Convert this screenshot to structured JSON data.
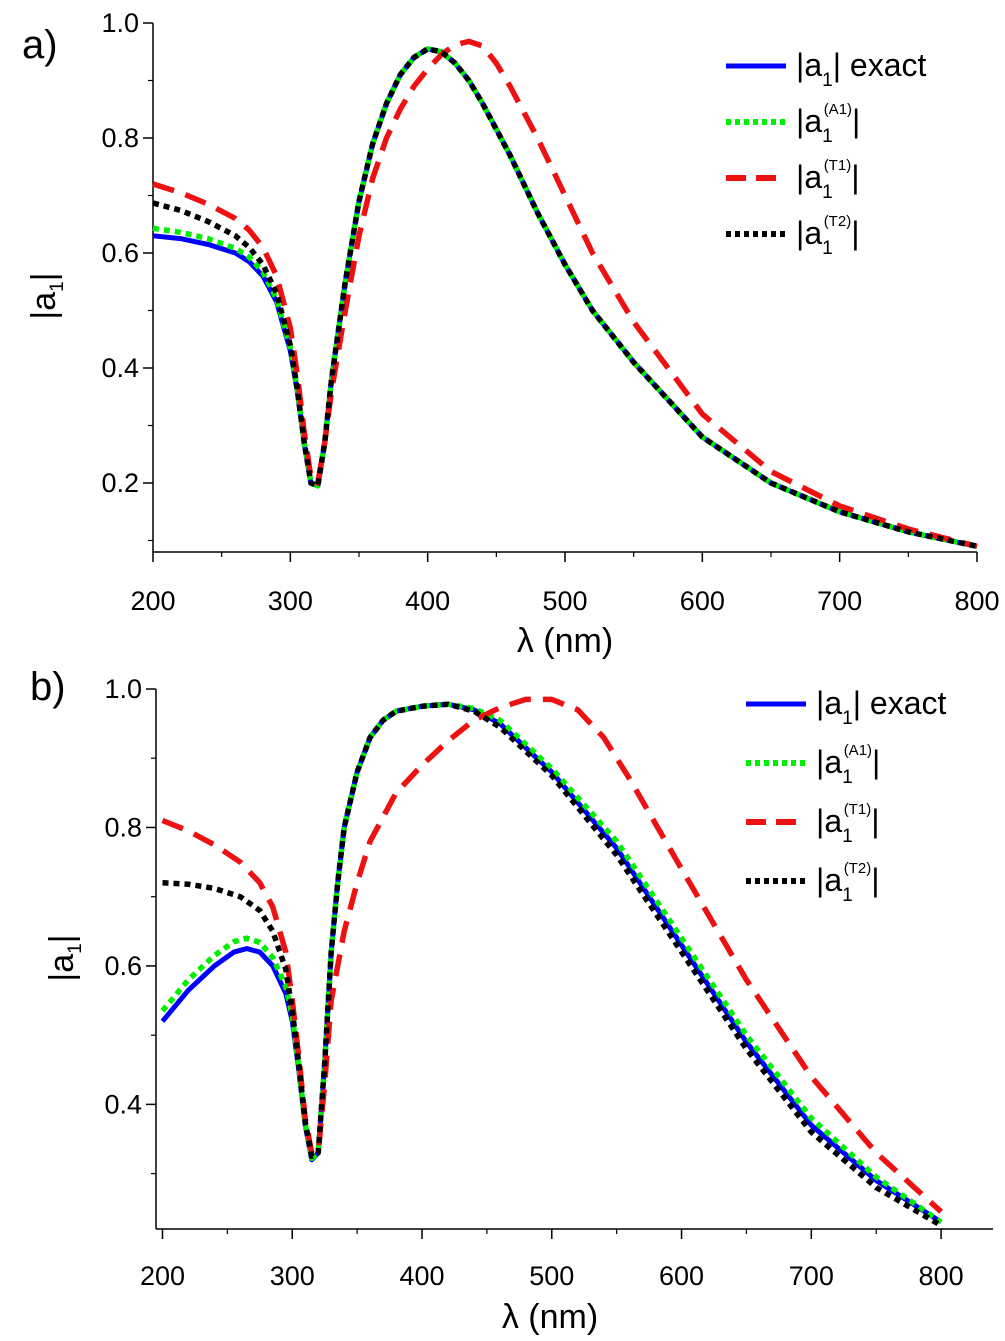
{
  "figure": {
    "panels": [
      "a)",
      "b)"
    ]
  },
  "chart_data": [
    {
      "type": "line",
      "panel": "a)",
      "title": "",
      "xlabel": "λ (nm)",
      "ylabel": "|a1|",
      "xlim": [
        200,
        800
      ],
      "ylim": [
        0.08,
        1.0
      ],
      "xticks": [
        200,
        300,
        400,
        500,
        600,
        700,
        800
      ],
      "yticks": [
        0.2,
        0.4,
        0.6,
        0.8,
        1.0
      ],
      "xtick_labels": [
        "200",
        "300",
        "400",
        "500",
        "600",
        "700",
        "800"
      ],
      "ytick_labels": [
        "0.2",
        "0.4",
        "0.6",
        "0.8",
        "1.0"
      ],
      "grid": false,
      "legend_position": "top-right",
      "series": [
        {
          "name": "|a1| exact",
          "label_main": "|a",
          "label_sub": "1",
          "label_sup": "",
          "label_tail": "| exact",
          "color": "#0000ff",
          "style": "solid",
          "x": [
            200,
            220,
            240,
            260,
            270,
            280,
            290,
            300,
            305,
            310,
            315,
            320,
            325,
            330,
            340,
            350,
            360,
            370,
            380,
            390,
            400,
            410,
            420,
            430,
            440,
            460,
            480,
            500,
            520,
            550,
            600,
            650,
            700,
            750,
            800
          ],
          "y": [
            0.63,
            0.625,
            0.615,
            0.6,
            0.585,
            0.56,
            0.515,
            0.43,
            0.36,
            0.27,
            0.2,
            0.195,
            0.27,
            0.38,
            0.55,
            0.69,
            0.79,
            0.86,
            0.91,
            0.94,
            0.955,
            0.95,
            0.93,
            0.9,
            0.86,
            0.77,
            0.67,
            0.58,
            0.5,
            0.41,
            0.28,
            0.2,
            0.15,
            0.115,
            0.09
          ]
        },
        {
          "name": "|a1(A1)|",
          "label_main": "|a",
          "label_sub": "1",
          "label_sup": "(A1)",
          "label_tail": "|",
          "color": "#00ee00",
          "style": "dotted",
          "x": [
            200,
            220,
            240,
            260,
            270,
            280,
            290,
            300,
            305,
            310,
            315,
            320,
            325,
            330,
            340,
            350,
            360,
            370,
            380,
            390,
            400,
            410,
            420,
            430,
            440,
            460,
            480,
            500,
            520,
            550,
            600,
            650,
            700,
            750,
            800
          ],
          "y": [
            0.643,
            0.636,
            0.625,
            0.608,
            0.593,
            0.567,
            0.52,
            0.435,
            0.363,
            0.272,
            0.2,
            0.195,
            0.27,
            0.38,
            0.55,
            0.69,
            0.79,
            0.86,
            0.91,
            0.94,
            0.955,
            0.95,
            0.93,
            0.9,
            0.86,
            0.77,
            0.67,
            0.58,
            0.5,
            0.41,
            0.28,
            0.2,
            0.15,
            0.115,
            0.09
          ]
        },
        {
          "name": "|a1(T1)|",
          "label_main": "|a",
          "label_sub": "1",
          "label_sup": "(T1)",
          "label_tail": "|",
          "color": "#ee1111",
          "style": "dashed",
          "x": [
            200,
            220,
            240,
            260,
            270,
            280,
            290,
            300,
            305,
            310,
            315,
            320,
            325,
            330,
            340,
            350,
            360,
            370,
            380,
            390,
            400,
            410,
            420,
            430,
            440,
            450,
            460,
            480,
            500,
            520,
            550,
            600,
            650,
            700,
            750,
            800
          ],
          "y": [
            0.72,
            0.705,
            0.685,
            0.66,
            0.64,
            0.61,
            0.56,
            0.47,
            0.39,
            0.29,
            0.21,
            0.2,
            0.27,
            0.36,
            0.5,
            0.63,
            0.73,
            0.8,
            0.85,
            0.89,
            0.92,
            0.945,
            0.962,
            0.968,
            0.96,
            0.93,
            0.89,
            0.8,
            0.7,
            0.6,
            0.48,
            0.32,
            0.22,
            0.16,
            0.12,
            0.09
          ]
        },
        {
          "name": "|a1(T2)|",
          "label_main": "|a",
          "label_sub": "1",
          "label_sup": "(T2)",
          "label_tail": "|",
          "color": "#000000",
          "style": "dotted",
          "x": [
            200,
            220,
            240,
            260,
            270,
            280,
            290,
            300,
            305,
            310,
            315,
            320,
            325,
            330,
            340,
            350,
            360,
            370,
            380,
            390,
            400,
            410,
            420,
            430,
            440,
            460,
            480,
            500,
            520,
            550,
            600,
            650,
            700,
            750,
            800
          ],
          "y": [
            0.687,
            0.674,
            0.655,
            0.63,
            0.61,
            0.58,
            0.53,
            0.44,
            0.365,
            0.272,
            0.2,
            0.195,
            0.27,
            0.38,
            0.55,
            0.69,
            0.79,
            0.86,
            0.91,
            0.94,
            0.955,
            0.95,
            0.93,
            0.9,
            0.86,
            0.77,
            0.67,
            0.58,
            0.5,
            0.41,
            0.28,
            0.2,
            0.15,
            0.115,
            0.09
          ]
        }
      ]
    },
    {
      "type": "line",
      "panel": "b)",
      "title": "",
      "xlabel": "λ (nm)",
      "ylabel": "|a1|",
      "xlim": [
        195,
        840
      ],
      "ylim": [
        0.22,
        1.0
      ],
      "xticks": [
        200,
        300,
        400,
        500,
        600,
        700,
        800
      ],
      "yticks": [
        0.4,
        0.6,
        0.8,
        1.0
      ],
      "xtick_labels": [
        "200",
        "300",
        "400",
        "500",
        "600",
        "700",
        "800"
      ],
      "ytick_labels": [
        "0.4",
        "0.6",
        "0.8",
        "1.0"
      ],
      "grid": false,
      "legend_position": "top-right",
      "series": [
        {
          "name": "|a1| exact",
          "label_main": "|a",
          "label_sub": "1",
          "label_sup": "",
          "label_tail": "| exact",
          "color": "#0000ff",
          "style": "solid",
          "x": [
            200,
            220,
            240,
            255,
            265,
            275,
            285,
            295,
            300,
            305,
            310,
            315,
            320,
            325,
            330,
            335,
            340,
            350,
            360,
            370,
            380,
            400,
            420,
            440,
            460,
            500,
            550,
            600,
            650,
            700,
            750,
            800
          ],
          "y": [
            0.52,
            0.565,
            0.6,
            0.62,
            0.625,
            0.62,
            0.6,
            0.56,
            0.52,
            0.45,
            0.37,
            0.32,
            0.33,
            0.46,
            0.62,
            0.72,
            0.8,
            0.88,
            0.93,
            0.955,
            0.968,
            0.975,
            0.978,
            0.97,
            0.95,
            0.88,
            0.77,
            0.63,
            0.49,
            0.37,
            0.29,
            0.23
          ]
        },
        {
          "name": "|a1(A1)|",
          "label_main": "|a",
          "label_sub": "1",
          "label_sup": "(A1)",
          "label_tail": "|",
          "color": "#00ee00",
          "style": "dotted",
          "x": [
            200,
            220,
            240,
            255,
            265,
            275,
            285,
            295,
            300,
            305,
            310,
            315,
            320,
            325,
            330,
            335,
            340,
            350,
            360,
            370,
            380,
            400,
            420,
            440,
            460,
            500,
            550,
            600,
            650,
            700,
            750,
            800
          ],
          "y": [
            0.535,
            0.58,
            0.615,
            0.635,
            0.64,
            0.634,
            0.612,
            0.57,
            0.528,
            0.455,
            0.372,
            0.322,
            0.33,
            0.46,
            0.62,
            0.72,
            0.8,
            0.88,
            0.93,
            0.955,
            0.968,
            0.975,
            0.978,
            0.972,
            0.955,
            0.885,
            0.78,
            0.64,
            0.5,
            0.38,
            0.295,
            0.23
          ]
        },
        {
          "name": "|a1(T1)|",
          "label_main": "|a",
          "label_sub": "1",
          "label_sup": "(T1)",
          "label_tail": "|",
          "color": "#ee1111",
          "style": "dashed",
          "x": [
            200,
            220,
            240,
            260,
            275,
            285,
            295,
            300,
            305,
            310,
            315,
            320,
            325,
            330,
            340,
            350,
            360,
            380,
            400,
            420,
            440,
            460,
            480,
            500,
            520,
            540,
            560,
            600,
            650,
            700,
            750,
            800
          ],
          "y": [
            0.81,
            0.795,
            0.775,
            0.75,
            0.72,
            0.685,
            0.62,
            0.55,
            0.47,
            0.38,
            0.33,
            0.33,
            0.43,
            0.55,
            0.65,
            0.72,
            0.78,
            0.85,
            0.89,
            0.925,
            0.955,
            0.973,
            0.985,
            0.985,
            0.97,
            0.93,
            0.87,
            0.74,
            0.58,
            0.44,
            0.33,
            0.245
          ]
        },
        {
          "name": "|a1(T2)|",
          "label_main": "|a",
          "label_sub": "1",
          "label_sup": "(T2)",
          "label_tail": "|",
          "color": "#000000",
          "style": "dotted",
          "x": [
            200,
            220,
            240,
            260,
            275,
            285,
            295,
            300,
            305,
            310,
            315,
            320,
            325,
            330,
            335,
            340,
            350,
            360,
            370,
            380,
            400,
            420,
            440,
            460,
            500,
            550,
            600,
            650,
            700,
            750,
            800
          ],
          "y": [
            0.72,
            0.718,
            0.712,
            0.7,
            0.68,
            0.65,
            0.595,
            0.535,
            0.46,
            0.375,
            0.325,
            0.33,
            0.46,
            0.62,
            0.72,
            0.8,
            0.88,
            0.93,
            0.955,
            0.968,
            0.975,
            0.978,
            0.968,
            0.945,
            0.875,
            0.76,
            0.62,
            0.48,
            0.36,
            0.28,
            0.225
          ]
        }
      ]
    }
  ]
}
